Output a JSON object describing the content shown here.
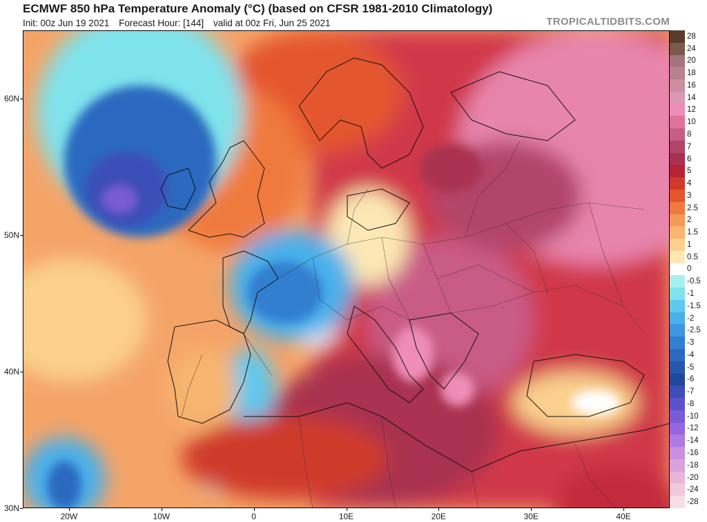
{
  "header": {
    "title": "ECMWF 850 hPa Temperature Anomaly (°C) (based on CFSR 1981-2010 Climatology)",
    "init": "Init: 00z Jun 19 2021",
    "forecast_hour": "Forecast Hour: [144]",
    "valid": "valid at 00z Fri, Jun 25 2021",
    "brand": "TROPICALTIDBITS.COM"
  },
  "map": {
    "variable": "850 hPa temperature anomaly",
    "units": "°C",
    "lon_range": [
      -25,
      45
    ],
    "lat_range": [
      30,
      65
    ],
    "lat_labels": [
      {
        "label": "60N",
        "value": 60
      },
      {
        "label": "50N",
        "value": 50
      },
      {
        "label": "40N",
        "value": 40
      },
      {
        "label": "30N",
        "value": 30
      }
    ],
    "lon_labels": [
      {
        "label": "20W",
        "value": -20
      },
      {
        "label": "10W",
        "value": -10
      },
      {
        "label": "0",
        "value": 0
      },
      {
        "label": "10E",
        "value": 10
      },
      {
        "label": "20E",
        "value": 20
      },
      {
        "label": "30E",
        "value": 30
      },
      {
        "label": "40E",
        "value": 40
      }
    ]
  },
  "legend": [
    {
      "label": "28",
      "color": "#5a3b2b"
    },
    {
      "label": "24",
      "color": "#7a5a4c"
    },
    {
      "label": "20",
      "color": "#a5737e"
    },
    {
      "label": "18",
      "color": "#b9808f"
    },
    {
      "label": "16",
      "color": "#cc8ea1"
    },
    {
      "label": "14",
      "color": "#dc97b2"
    },
    {
      "label": "12",
      "color": "#ee8eb8"
    },
    {
      "label": "10",
      "color": "#e0739a"
    },
    {
      "label": "8",
      "color": "#c75e82"
    },
    {
      "label": "7",
      "color": "#b2456a"
    },
    {
      "label": "6",
      "color": "#a83050"
    },
    {
      "label": "5",
      "color": "#b42436"
    },
    {
      "label": "4",
      "color": "#cf3a2c"
    },
    {
      "label": "3",
      "color": "#e4562e"
    },
    {
      "label": "2.5",
      "color": "#f07a3e"
    },
    {
      "label": "2",
      "color": "#f59a55"
    },
    {
      "label": "1.5",
      "color": "#f8b56f"
    },
    {
      "label": "1",
      "color": "#fbd08e"
    },
    {
      "label": "0.5",
      "color": "#fde8b5"
    },
    {
      "label": "0",
      "color": "#ffffff"
    },
    {
      "label": "-0.5",
      "color": "#a8f0f0"
    },
    {
      "label": "-1",
      "color": "#7fe3ec"
    },
    {
      "label": "-1.5",
      "color": "#5fc8ee"
    },
    {
      "label": "-2",
      "color": "#4ab0ea"
    },
    {
      "label": "-2.5",
      "color": "#3d96df"
    },
    {
      "label": "-3",
      "color": "#337fd0"
    },
    {
      "label": "-4",
      "color": "#2c69bf"
    },
    {
      "label": "-5",
      "color": "#2558ad"
    },
    {
      "label": "-6",
      "color": "#1f489a"
    },
    {
      "label": "-7",
      "color": "#3b4db8"
    },
    {
      "label": "-8",
      "color": "#5a52cc"
    },
    {
      "label": "-10",
      "color": "#7a5cd8"
    },
    {
      "label": "-12",
      "color": "#9566df"
    },
    {
      "label": "-14",
      "color": "#b07ae3"
    },
    {
      "label": "-16",
      "color": "#c98fe0"
    },
    {
      "label": "-18",
      "color": "#dba2dc"
    },
    {
      "label": "-20",
      "color": "#e8b4d8"
    },
    {
      "label": "-24",
      "color": "#f2c8dd"
    },
    {
      "label": "-28",
      "color": "#f8dce6"
    }
  ]
}
